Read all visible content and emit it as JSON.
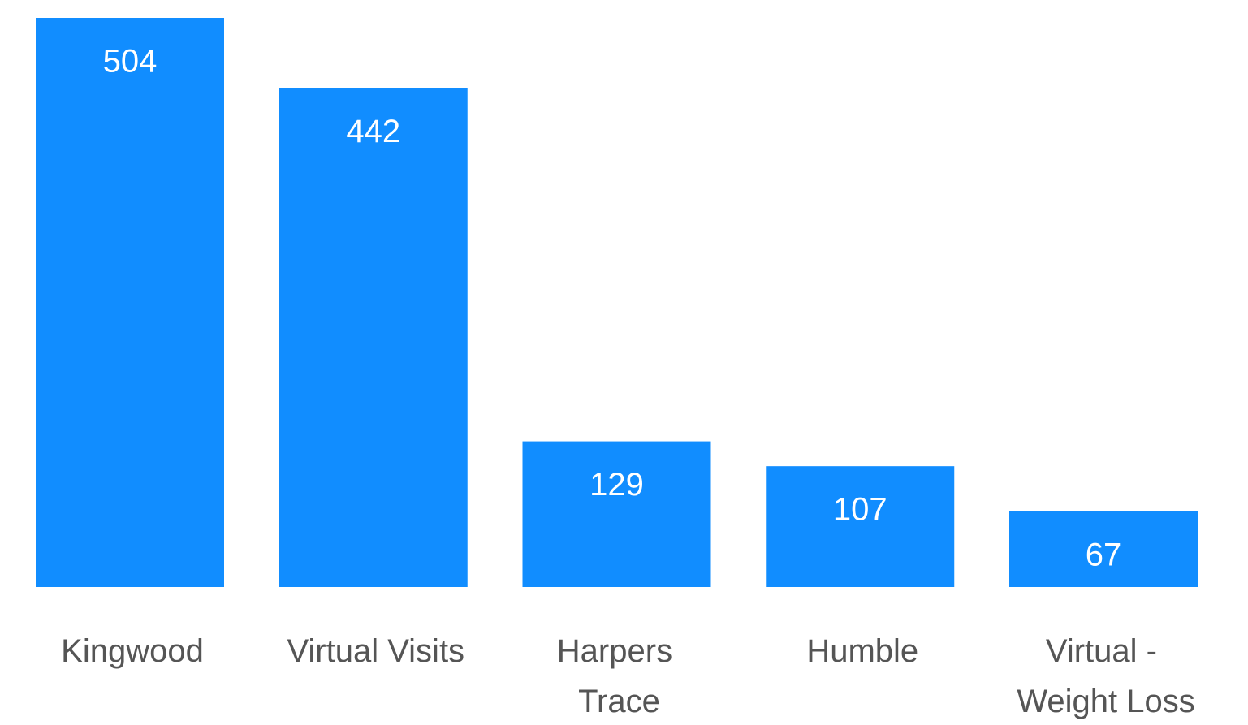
{
  "chart_data": {
    "type": "bar",
    "categories": [
      "Kingwood",
      "Virtual Visits",
      "Harpers Trace",
      "Humble",
      "Virtual - Weight Loss"
    ],
    "values": [
      504,
      442,
      129,
      107,
      67
    ],
    "color": "#118dff"
  }
}
